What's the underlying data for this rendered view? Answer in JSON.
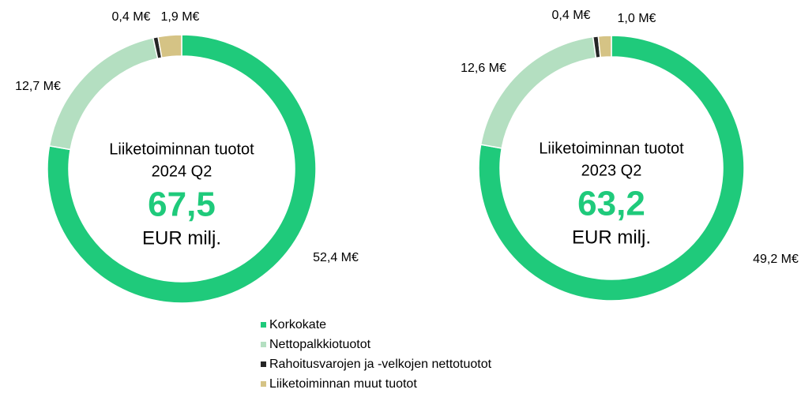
{
  "chart_data": [
    {
      "type": "pie",
      "title": [
        "Liiketoiminnan tuotot",
        "2024 Q2"
      ],
      "center_value": "67,5",
      "center_unit": "EUR milj.",
      "values": [
        52.4,
        12.7,
        0.4,
        1.9
      ],
      "value_labels": [
        "52,4 M€",
        "12,7 M€",
        "0,4 M€",
        "1,9 M€"
      ],
      "colors": [
        "#1fca7b",
        "#b4dfc1",
        "#262626",
        "#d5c385"
      ]
    },
    {
      "type": "pie",
      "title": [
        "Liiketoiminnan tuotot",
        "2023 Q2"
      ],
      "center_value": "63,2",
      "center_unit": "EUR milj.",
      "values": [
        49.2,
        12.6,
        0.4,
        1.0
      ],
      "value_labels": [
        "49,2 M€",
        "12,6 M€",
        "0,4 M€",
        "1,0 M€"
      ],
      "colors": [
        "#1fca7b",
        "#b4dfc1",
        "#262626",
        "#d5c385"
      ]
    }
  ],
  "legend": {
    "labels": [
      "Korkokate",
      "Nettopalkkiotuotot",
      "Rahoitusvarojen ja -velkojen nettotuotot",
      "Liiketoiminnan muut tuotot"
    ],
    "colors": [
      "#1fca7b",
      "#b4dfc1",
      "#262626",
      "#d5c385"
    ]
  }
}
